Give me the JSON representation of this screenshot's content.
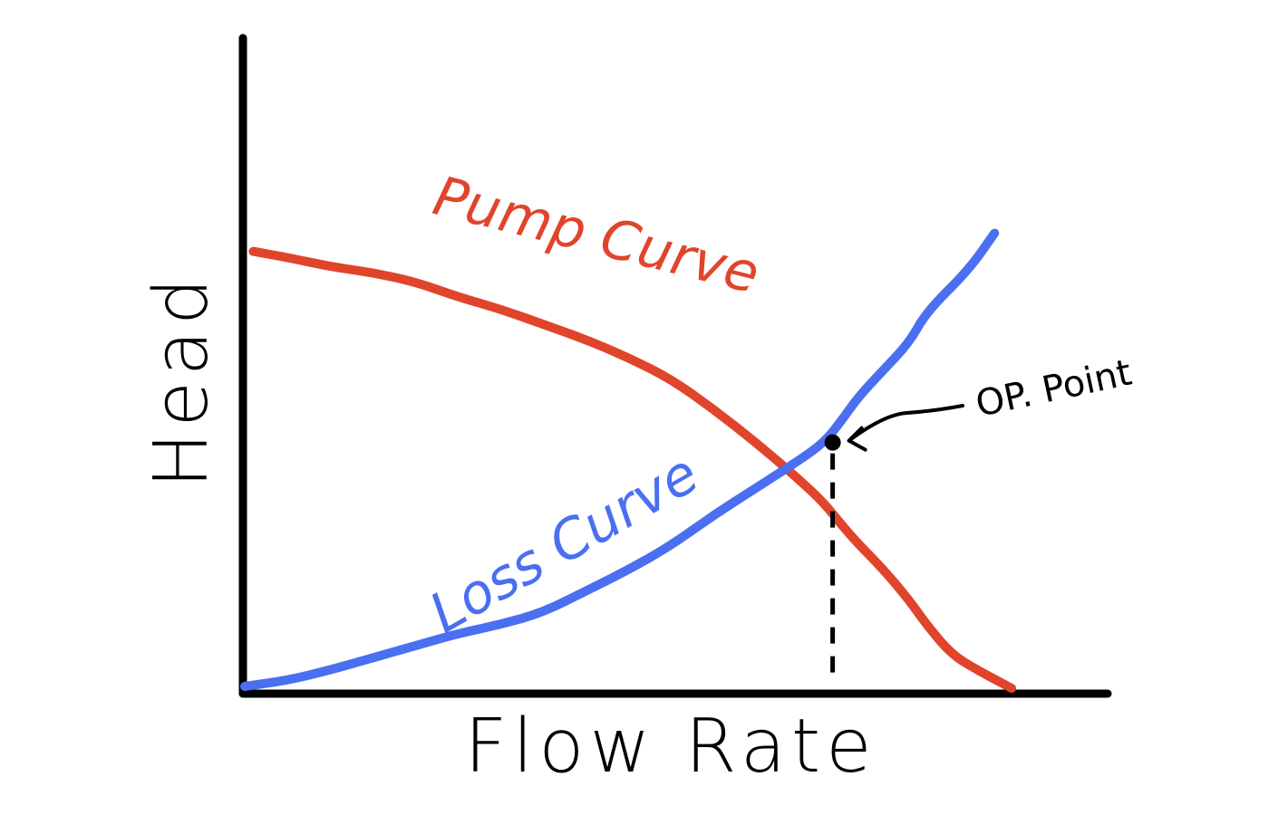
{
  "chart_data": {
    "type": "line",
    "title": "",
    "xlabel": "Flow Rate",
    "ylabel": "Head",
    "xlim": [
      0,
      100
    ],
    "ylim": [
      0,
      100
    ],
    "grid": false,
    "ticks": false,
    "series": [
      {
        "name": "Pump Curve",
        "color": "#e0452b",
        "x": [
          1,
          5,
          10,
          15,
          20,
          25,
          30,
          35,
          40,
          45,
          50,
          55,
          60,
          65,
          68,
          70,
          72,
          75,
          78,
          80,
          83,
          86,
          88,
          90
        ],
        "y": [
          72,
          71,
          69.5,
          68.5,
          67,
          64.5,
          62.5,
          60,
          57.5,
          54.5,
          51,
          46,
          40.5,
          34.5,
          30.5,
          27,
          23.8,
          19.5,
          14.5,
          10.5,
          5.5,
          3,
          1.5,
          0
        ]
      },
      {
        "name": "Loss Curve",
        "color": "#4a6ff0",
        "x": [
          0,
          5,
          10,
          15,
          20,
          25,
          30,
          35,
          40,
          45,
          50,
          55,
          60,
          65,
          68,
          70,
          72,
          75,
          78,
          80,
          85,
          88
        ],
        "y": [
          0.3,
          1.3,
          3,
          5,
          7,
          9,
          10.5,
          12.5,
          16,
          19.5,
          23.5,
          28.5,
          33,
          37.5,
          40.5,
          44,
          48,
          52.5,
          57,
          62,
          69,
          75
        ]
      }
    ],
    "annotations": [
      {
        "label": "OP. Point",
        "x": 69,
        "y": 40.5
      }
    ]
  }
}
